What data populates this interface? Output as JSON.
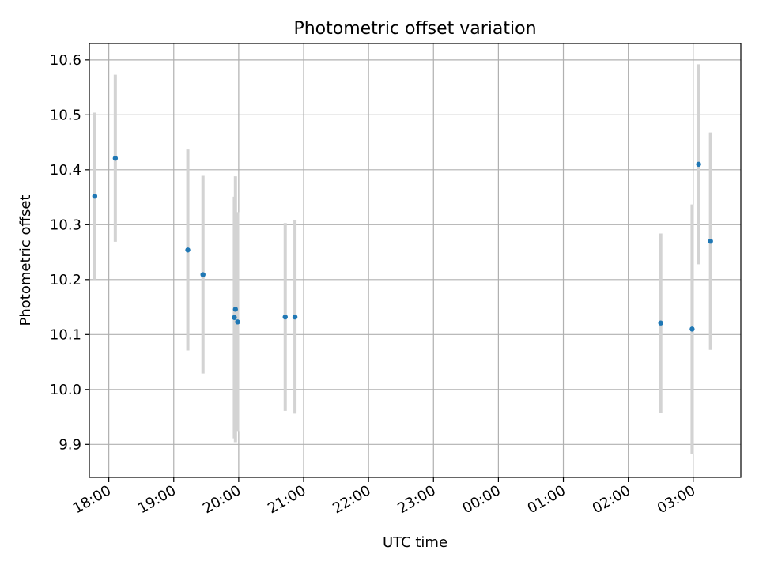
{
  "chart_data": {
    "type": "scatter",
    "title": "Photometric offset variation",
    "xlabel": "UTC time",
    "ylabel": "Photometric offset",
    "grid": true,
    "colors": {
      "point": "#1f77b4",
      "errorbar": "#d3d3d3",
      "grid": "#b0b0b0"
    },
    "x_ticks": [
      "18:00",
      "19:00",
      "20:00",
      "21:00",
      "22:00",
      "23:00",
      "00:00",
      "01:00",
      "02:00",
      "03:00"
    ],
    "y_ticks": [
      "9.9",
      "10.0",
      "10.1",
      "10.2",
      "10.3",
      "10.4",
      "10.5",
      "10.6"
    ],
    "ylim": [
      9.84,
      10.63
    ],
    "xlim": [
      "17:42",
      "03:44"
    ],
    "points": [
      {
        "time": "17:47",
        "y": 10.352,
        "err": 0.152
      },
      {
        "time": "18:06",
        "y": 10.421,
        "err": 0.152
      },
      {
        "time": "19:13",
        "y": 10.254,
        "err": 0.183
      },
      {
        "time": "19:27",
        "y": 10.209,
        "err": 0.18
      },
      {
        "time": "19:56",
        "y": 10.131,
        "err": 0.22
      },
      {
        "time": "19:57",
        "y": 10.146,
        "err": 0.242
      },
      {
        "time": "19:59",
        "y": 10.123,
        "err": 0.2
      },
      {
        "time": "20:43",
        "y": 10.132,
        "err": 0.171
      },
      {
        "time": "20:52",
        "y": 10.132,
        "err": 0.176
      },
      {
        "time": "02:30",
        "y": 10.121,
        "err": 0.163
      },
      {
        "time": "02:59",
        "y": 10.11,
        "err": 0.227
      },
      {
        "time": "03:05",
        "y": 10.41,
        "err": 0.182
      },
      {
        "time": "03:16",
        "y": 10.27,
        "err": 0.198
      }
    ]
  }
}
